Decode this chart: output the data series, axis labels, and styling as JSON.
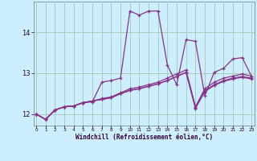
{
  "xlabel": "Windchill (Refroidissement éolien,°C)",
  "bg_color": "#cceeff",
  "grid_color": "#aaccbb",
  "line_color": "#883388",
  "series": [
    [
      12.0,
      11.87,
      12.1,
      12.18,
      12.2,
      12.28,
      12.3,
      12.78,
      12.82,
      12.88,
      14.52,
      14.42,
      14.52,
      14.52,
      13.2,
      12.72,
      13.82,
      13.78,
      12.45,
      13.02,
      13.12,
      13.35,
      13.38,
      12.92
    ],
    [
      12.0,
      11.87,
      12.1,
      12.18,
      12.2,
      12.28,
      12.32,
      12.38,
      12.42,
      12.52,
      12.62,
      12.66,
      12.72,
      12.78,
      12.88,
      12.98,
      13.08,
      12.18,
      12.62,
      12.78,
      12.88,
      12.93,
      12.98,
      12.93
    ],
    [
      12.0,
      11.87,
      12.1,
      12.18,
      12.2,
      12.28,
      12.32,
      12.36,
      12.4,
      12.5,
      12.58,
      12.62,
      12.68,
      12.74,
      12.82,
      12.92,
      13.02,
      12.16,
      12.58,
      12.72,
      12.82,
      12.88,
      12.92,
      12.88
    ],
    [
      12.0,
      11.87,
      12.1,
      12.18,
      12.2,
      12.28,
      12.32,
      12.36,
      12.4,
      12.5,
      12.58,
      12.62,
      12.68,
      12.74,
      12.82,
      12.92,
      13.02,
      12.14,
      12.55,
      12.7,
      12.8,
      12.86,
      12.9,
      12.86
    ]
  ],
  "xlim": [
    -0.3,
    23.3
  ],
  "ylim": [
    11.72,
    14.75
  ],
  "yticks": [
    12,
    13,
    14
  ],
  "xticks": [
    0,
    1,
    2,
    3,
    4,
    5,
    6,
    7,
    8,
    9,
    10,
    11,
    12,
    13,
    14,
    15,
    16,
    17,
    18,
    19,
    20,
    21,
    22,
    23
  ]
}
